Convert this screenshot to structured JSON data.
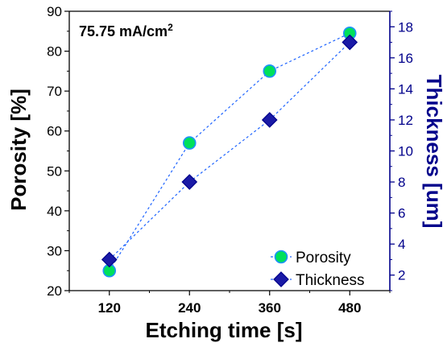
{
  "chart_data": {
    "type": "line",
    "annotation": "75.75 mA/cm",
    "annotation_sup": "2",
    "xlabel": "Etching time [s]",
    "ylabel_left": "Porosity [%]",
    "ylabel_right": "Thickness [um]",
    "x": [
      120,
      240,
      360,
      480
    ],
    "x_ticks": [
      "120",
      "240",
      "360",
      "480"
    ],
    "xlim": [
      60,
      540
    ],
    "ylim_left": [
      20,
      90
    ],
    "yticks_left": [
      "20",
      "30",
      "40",
      "50",
      "60",
      "70",
      "80",
      "90"
    ],
    "ylim_right": [
      1,
      19
    ],
    "yticks_right": [
      "2",
      "4",
      "6",
      "8",
      "10",
      "12",
      "14",
      "16",
      "18"
    ],
    "series": [
      {
        "name": "Porosity",
        "axis": "left",
        "marker": "circle",
        "values": [
          25,
          57,
          75,
          84.5
        ],
        "color": "#00e05a",
        "edge": "#1e90ff"
      },
      {
        "name": "Thickness",
        "axis": "right",
        "marker": "diamond",
        "values": [
          3,
          8,
          12,
          17
        ],
        "color": "#1a1aa6",
        "edge": "#00008b"
      }
    ],
    "line_color": "#1e64ff",
    "grid": false,
    "legend_position": "bottom-right"
  }
}
